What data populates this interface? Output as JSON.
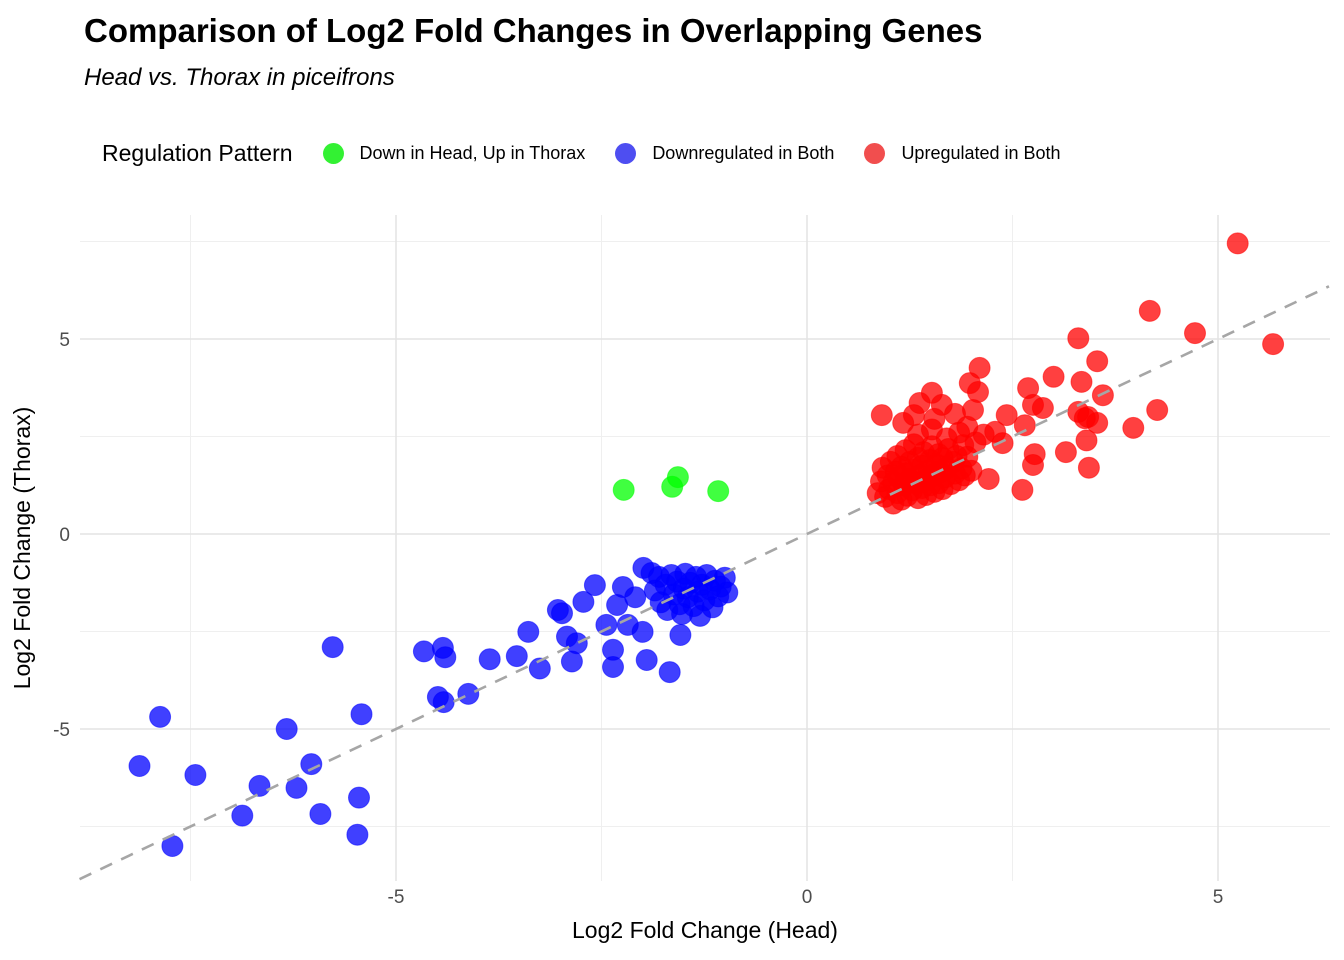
{
  "header": {
    "title": "Comparison of Log2 Fold Changes in Overlapping Genes",
    "subtitle": "Head vs. Thorax in piceifrons"
  },
  "legend": {
    "title": "Regulation Pattern",
    "items": [
      {
        "label": "Down in Head, Up in Thorax",
        "color": "#00EE00"
      },
      {
        "label": "Downregulated in Both",
        "color": "#2222EE"
      },
      {
        "label": "Upregulated in Both",
        "color": "#EE2222"
      }
    ]
  },
  "chart_data": {
    "type": "scatter",
    "title": "Comparison of Log2 Fold Changes in Overlapping Genes",
    "subtitle": "Head vs. Thorax in piceifrons",
    "xlabel": "Log2 Fold Change (Head)",
    "ylabel": "Log2 Fold Change (Thorax)",
    "xlim": [
      -8.85,
      6.35
    ],
    "ylim": [
      -8.9,
      8.2
    ],
    "x_major_ticks": [
      -5,
      0,
      5
    ],
    "x_minor_ticks": [
      -7.5,
      -2.5,
      2.5
    ],
    "y_major_ticks": [
      -5,
      0,
      5
    ],
    "y_minor_ticks": [
      -7.5,
      -2.5,
      2.5,
      7.5
    ],
    "grid": true,
    "legend_position": "top",
    "identity_line": {
      "style": "dashed",
      "color": "#A6A6A6",
      "slope": 1,
      "intercept": 0
    },
    "point_opacity": 0.75,
    "point_radius": 10.5,
    "series": [
      {
        "name": "Down in Head, Up in Thorax",
        "color": "#00FF00",
        "points": [
          [
            -2.23,
            1.13
          ],
          [
            -1.64,
            1.21
          ],
          [
            -1.57,
            1.46
          ],
          [
            -1.08,
            1.1
          ]
        ]
      },
      {
        "name": "Downregulated in Both",
        "color": "#0000FF",
        "points": [
          [
            -8.12,
            -5.95
          ],
          [
            -7.87,
            -4.69
          ],
          [
            -7.72,
            -8.0
          ],
          [
            -7.44,
            -6.18
          ],
          [
            -6.87,
            -7.22
          ],
          [
            -6.66,
            -6.46
          ],
          [
            -6.33,
            -5.0
          ],
          [
            -6.21,
            -6.51
          ],
          [
            -6.03,
            -5.9
          ],
          [
            -5.92,
            -7.18
          ],
          [
            -5.77,
            -2.9
          ],
          [
            -5.47,
            -7.71
          ],
          [
            -5.45,
            -6.76
          ],
          [
            -5.42,
            -4.62
          ],
          [
            -4.66,
            -3.01
          ],
          [
            -4.49,
            -4.18
          ],
          [
            -4.43,
            -2.92
          ],
          [
            -4.42,
            -4.31
          ],
          [
            -4.4,
            -3.16
          ],
          [
            -4.12,
            -4.1
          ],
          [
            -3.86,
            -3.21
          ],
          [
            -3.53,
            -3.13
          ],
          [
            -3.39,
            -2.51
          ],
          [
            -3.25,
            -3.45
          ],
          [
            -3.03,
            -1.95
          ],
          [
            -2.98,
            -2.03
          ],
          [
            -2.92,
            -2.63
          ],
          [
            -2.86,
            -3.27
          ],
          [
            -2.8,
            -2.8
          ],
          [
            -2.72,
            -1.74
          ],
          [
            -2.58,
            -1.31
          ],
          [
            -2.44,
            -2.33
          ],
          [
            -2.36,
            -2.97
          ],
          [
            -2.36,
            -3.41
          ],
          [
            -2.31,
            -1.82
          ],
          [
            -2.24,
            -1.36
          ],
          [
            -2.18,
            -2.33
          ],
          [
            -2.09,
            -1.62
          ],
          [
            -2.0,
            -2.51
          ],
          [
            -1.99,
            -0.87
          ],
          [
            -1.95,
            -3.23
          ],
          [
            -1.89,
            -1.0
          ],
          [
            -1.67,
            -3.54
          ],
          [
            -1.54,
            -2.59
          ],
          [
            -1.85,
            -1.45
          ],
          [
            -1.8,
            -1.1
          ],
          [
            -1.78,
            -1.75
          ],
          [
            -1.72,
            -1.3
          ],
          [
            -1.7,
            -1.95
          ],
          [
            -1.65,
            -1.05
          ],
          [
            -1.62,
            -1.55
          ],
          [
            -1.58,
            -1.22
          ],
          [
            -1.55,
            -1.8
          ],
          [
            -1.52,
            -2.05
          ],
          [
            -1.5,
            -1.4
          ],
          [
            -1.48,
            -1.02
          ],
          [
            -1.45,
            -1.62
          ],
          [
            -1.42,
            -1.25
          ],
          [
            -1.38,
            -1.85
          ],
          [
            -1.35,
            -1.1
          ],
          [
            -1.33,
            -1.48
          ],
          [
            -1.3,
            -2.1
          ],
          [
            -1.28,
            -1.3
          ],
          [
            -1.25,
            -1.7
          ],
          [
            -1.22,
            -1.05
          ],
          [
            -1.18,
            -1.42
          ],
          [
            -1.15,
            -1.88
          ],
          [
            -1.12,
            -1.2
          ],
          [
            -1.08,
            -1.6
          ],
          [
            -1.05,
            -1.35
          ],
          [
            -1.0,
            -1.12
          ],
          [
            -0.97,
            -1.5
          ]
        ]
      },
      {
        "name": "Upregulated in Both",
        "color": "#FF0000",
        "points": [
          [
            5.24,
            7.45
          ],
          [
            5.67,
            4.87
          ],
          [
            4.72,
            5.15
          ],
          [
            4.17,
            5.72
          ],
          [
            3.3,
            5.02
          ],
          [
            3.53,
            4.43
          ],
          [
            3.0,
            4.03
          ],
          [
            3.34,
            3.9
          ],
          [
            3.6,
            3.56
          ],
          [
            2.1,
            4.26
          ],
          [
            1.98,
            3.87
          ],
          [
            2.08,
            3.64
          ],
          [
            2.69,
            3.74
          ],
          [
            2.75,
            3.31
          ],
          [
            2.87,
            3.23
          ],
          [
            3.3,
            3.13
          ],
          [
            3.42,
            3.0
          ],
          [
            4.26,
            3.18
          ],
          [
            3.97,
            2.72
          ],
          [
            3.38,
            2.97
          ],
          [
            3.53,
            2.85
          ],
          [
            3.4,
            2.4
          ],
          [
            3.15,
            2.1
          ],
          [
            2.77,
            2.05
          ],
          [
            2.75,
            1.77
          ],
          [
            3.43,
            1.7
          ],
          [
            2.38,
            2.33
          ],
          [
            2.29,
            2.62
          ],
          [
            2.65,
            2.79
          ],
          [
            2.43,
            3.05
          ],
          [
            2.62,
            1.13
          ],
          [
            2.21,
            1.41
          ],
          [
            0.91,
            3.05
          ],
          [
            1.17,
            2.85
          ],
          [
            1.52,
            3.62
          ],
          [
            1.37,
            3.36
          ],
          [
            1.64,
            3.31
          ],
          [
            1.3,
            3.05
          ],
          [
            1.55,
            2.95
          ],
          [
            1.8,
            3.08
          ],
          [
            2.02,
            3.18
          ],
          [
            1.95,
            2.75
          ],
          [
            2.15,
            2.55
          ],
          [
            0.86,
            1.05
          ],
          [
            0.9,
            1.35
          ],
          [
            0.92,
            1.7
          ],
          [
            0.95,
            0.95
          ],
          [
            0.98,
            1.5
          ],
          [
            1.0,
            1.15
          ],
          [
            1.02,
            1.85
          ],
          [
            1.05,
            0.78
          ],
          [
            1.05,
            1.32
          ],
          [
            1.08,
            1.6
          ],
          [
            1.1,
            1.05
          ],
          [
            1.1,
            2.0
          ],
          [
            1.12,
            1.45
          ],
          [
            1.15,
            0.88
          ],
          [
            1.15,
            1.72
          ],
          [
            1.18,
            1.25
          ],
          [
            1.2,
            1.55
          ],
          [
            1.2,
            2.15
          ],
          [
            1.22,
            0.98
          ],
          [
            1.25,
            1.4
          ],
          [
            1.25,
            1.85
          ],
          [
            1.28,
            1.12
          ],
          [
            1.3,
            1.65
          ],
          [
            1.3,
            2.3
          ],
          [
            1.32,
            1.3
          ],
          [
            1.35,
            0.92
          ],
          [
            1.35,
            1.95
          ],
          [
            1.38,
            1.5
          ],
          [
            1.4,
            1.18
          ],
          [
            1.4,
            1.75
          ],
          [
            1.42,
            2.1
          ],
          [
            1.45,
            1.0
          ],
          [
            1.45,
            1.38
          ],
          [
            1.48,
            1.62
          ],
          [
            1.5,
            1.25
          ],
          [
            1.5,
            1.9
          ],
          [
            1.52,
            2.25
          ],
          [
            1.55,
            1.08
          ],
          [
            1.55,
            1.52
          ],
          [
            1.58,
            1.78
          ],
          [
            1.6,
            1.3
          ],
          [
            1.6,
            2.05
          ],
          [
            1.62,
            1.6
          ],
          [
            1.65,
            1.15
          ],
          [
            1.65,
            1.95
          ],
          [
            1.68,
            1.45
          ],
          [
            1.7,
            1.7
          ],
          [
            1.72,
            2.18
          ],
          [
            1.75,
            1.28
          ],
          [
            1.78,
            1.85
          ],
          [
            1.8,
            1.55
          ],
          [
            1.82,
            2.0
          ],
          [
            1.85,
            1.38
          ],
          [
            1.88,
            1.68
          ],
          [
            1.9,
            2.28
          ],
          [
            1.92,
            1.5
          ],
          [
            1.95,
            1.98
          ],
          [
            2.0,
            1.62
          ],
          [
            2.05,
            2.35
          ],
          [
            1.35,
            2.55
          ],
          [
            1.52,
            2.68
          ],
          [
            1.7,
            2.45
          ],
          [
            1.85,
            2.6
          ]
        ]
      }
    ],
    "colors": {
      "grid_major": "#E4E4E4",
      "grid_minor": "#EFEFEF",
      "tick_label": "#4D4D4D",
      "axis_title": "#000000",
      "dashed_line": "#A6A6A6"
    }
  }
}
